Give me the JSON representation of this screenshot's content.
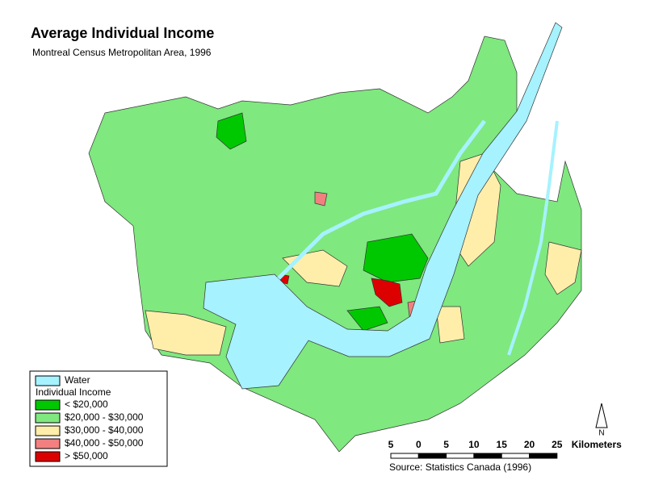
{
  "header": {
    "title": "Average Individual Income",
    "subtitle": "Montreal Census Metropolitan Area, 1996"
  },
  "legend": {
    "water": {
      "label": "Water",
      "color": "#a6f2ff"
    },
    "heading": "Individual Income",
    "items": [
      {
        "label": "< $20,000",
        "color": "#00c800"
      },
      {
        "label": "$20,000 - $30,000",
        "color": "#7fe87f"
      },
      {
        "label": "$30,000 - $40,000",
        "color": "#ffeeaa"
      },
      {
        "label": "$40,000 - $50,000",
        "color": "#f28080"
      },
      {
        "label": "> $50,000",
        "color": "#dd0000"
      }
    ]
  },
  "scale": {
    "labels": [
      "5",
      "0",
      "5",
      "10",
      "15",
      "20",
      "25"
    ],
    "unit": "Kilometers"
  },
  "north": "N",
  "source": "Source: Statistics Canada (1996)"
}
